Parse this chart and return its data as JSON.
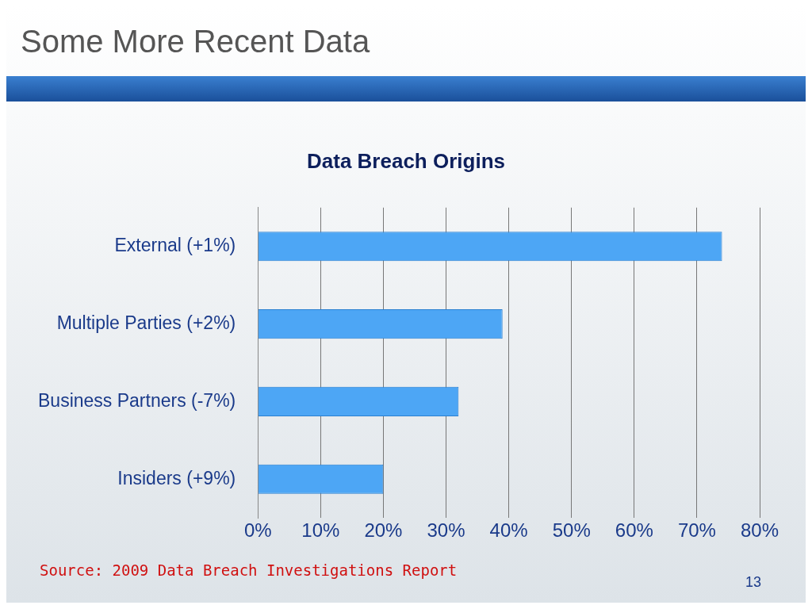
{
  "chart_data": {
    "type": "bar",
    "orientation": "horizontal",
    "title": "Some More Recent Data",
    "subtitle": "Data Breach Origins",
    "categories": [
      "External (+1%)",
      "Multiple Parties (+2%)",
      "Business Partners (-7%)",
      "Insiders (+9%)"
    ],
    "values": [
      74,
      39,
      32,
      20
    ],
    "color": "#4da6f5",
    "xlim": [
      0,
      80
    ],
    "xticks": [
      {
        "value": 0,
        "label": "0%"
      },
      {
        "value": 10,
        "label": "10%"
      },
      {
        "value": 20,
        "label": "20%"
      },
      {
        "value": 30,
        "label": "30%"
      },
      {
        "value": 40,
        "label": "40%"
      },
      {
        "value": 50,
        "label": "50%"
      },
      {
        "value": 60,
        "label": "60%"
      },
      {
        "value": 70,
        "label": "70%"
      },
      {
        "value": 80,
        "label": "80%"
      }
    ],
    "grid": "x",
    "legend": false,
    "annotations": [
      "Source: 2009 Data Breach Investigations Report",
      "13"
    ]
  }
}
